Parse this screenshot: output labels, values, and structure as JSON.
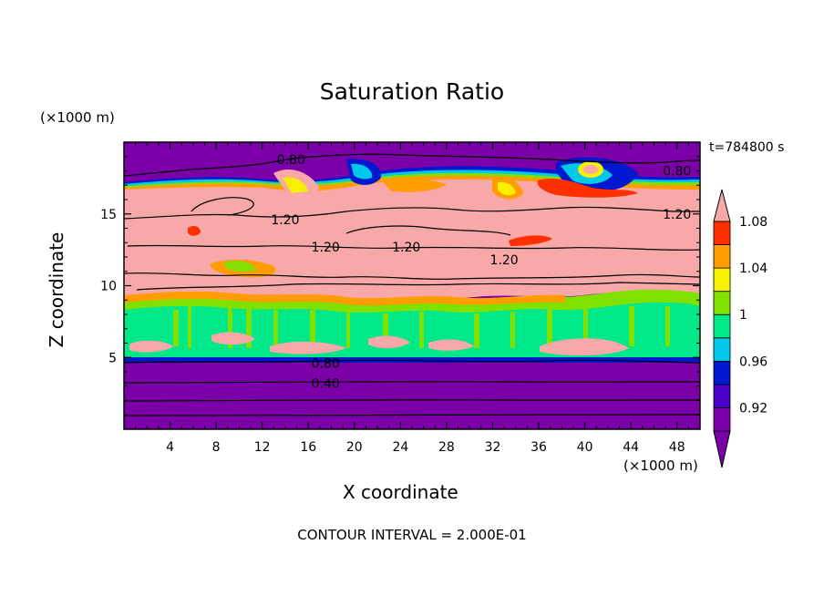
{
  "chart_data": {
    "type": "heatmap",
    "title": "Saturation Ratio",
    "xlabel": "X coordinate",
    "ylabel": "Z coordinate",
    "x_unit": "(×1000 m)",
    "z_unit": "(×1000 m)",
    "time_label": "t=784800 s",
    "footer": "CONTOUR INTERVAL = 2.000E-01",
    "xlim": [
      0,
      50
    ],
    "ylim": [
      0,
      20
    ],
    "x_ticks": [
      4,
      8,
      12,
      16,
      20,
      24,
      28,
      32,
      36,
      40,
      44,
      48
    ],
    "y_ticks": [
      5,
      10,
      15
    ],
    "colorbar": {
      "levels": [
        0.92,
        0.96,
        1,
        1.04,
        1.08
      ],
      "tick_labels": [
        "0.92",
        "0.96",
        "1",
        "1.04",
        "1.08"
      ],
      "colors": [
        "#7c00a8",
        "#4a00c8",
        "#0018d0",
        "#00c8e8",
        "#00e888",
        "#80e000",
        "#f8f000",
        "#ff9c00",
        "#ff3000",
        "#f8a8a8"
      ]
    },
    "contour_labels": [
      {
        "text": "0.80",
        "x": 14.5,
        "z": 18.8
      },
      {
        "text": "0.80",
        "x": 48.0,
        "z": 18.0
      },
      {
        "text": "1.20",
        "x": 14.0,
        "z": 14.6
      },
      {
        "text": "1.20",
        "x": 48.0,
        "z": 15.0
      },
      {
        "text": "1.20",
        "x": 17.5,
        "z": 12.7
      },
      {
        "text": "1.20",
        "x": 24.5,
        "z": 12.7
      },
      {
        "text": "1.20",
        "x": 33.0,
        "z": 11.8
      },
      {
        "text": "0.80",
        "x": 17.5,
        "z": 4.6
      },
      {
        "text": "0.40",
        "x": 17.5,
        "z": 3.2
      }
    ]
  }
}
